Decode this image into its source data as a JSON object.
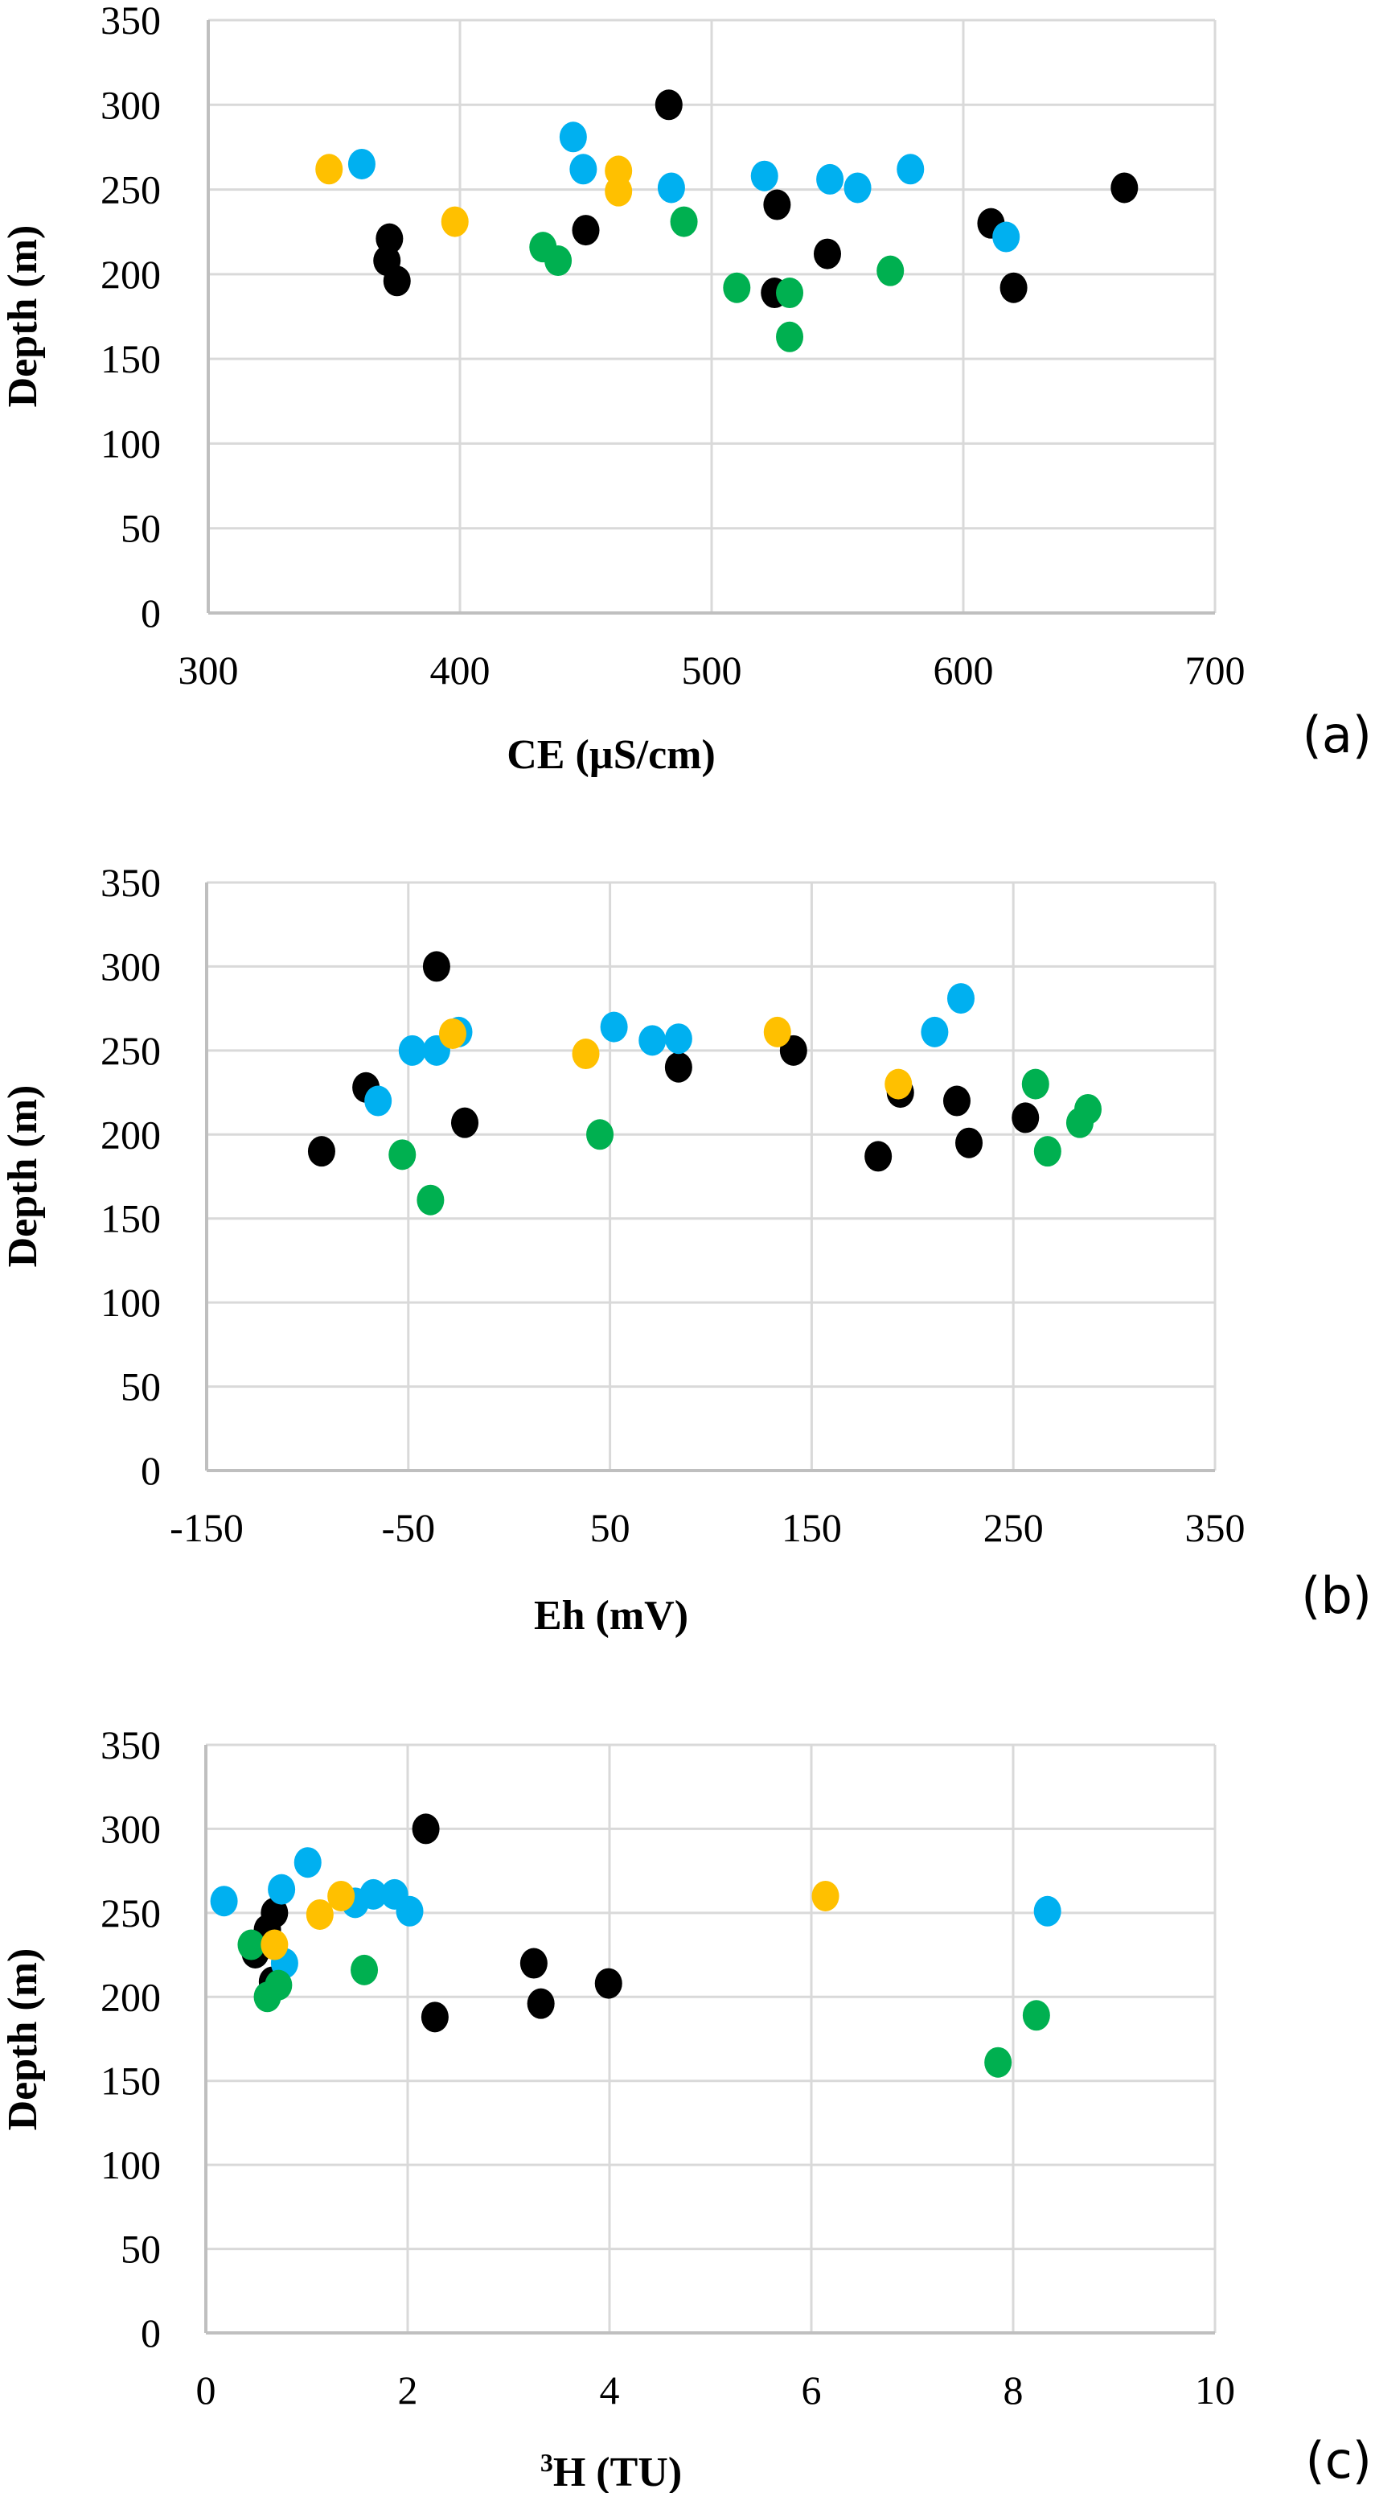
{
  "chart_data": [
    {
      "id": "a",
      "type": "scatter",
      "panel_label": "(a)",
      "title": "",
      "xlabel": "CE (µS/cm)",
      "ylabel": "Depth (m)",
      "xlim": [
        300,
        700
      ],
      "ylim": [
        0,
        350
      ],
      "xticks": [
        300,
        400,
        500,
        600,
        700
      ],
      "yticks": [
        0,
        50,
        100,
        150,
        200,
        250,
        300,
        350
      ],
      "grid": true,
      "legend": "none",
      "series": [
        {
          "name": "black",
          "color": "#000000",
          "points": [
            [
              483,
              300
            ],
            [
              372,
              221
            ],
            [
              371,
              208
            ],
            [
              375,
              196
            ],
            [
              450,
              226
            ],
            [
              526,
              241
            ],
            [
              546,
              212
            ],
            [
              525,
              189
            ],
            [
              611,
              230
            ],
            [
              620,
              192
            ],
            [
              664,
              251
            ]
          ]
        },
        {
          "name": "blue",
          "color": "#00B0F0",
          "points": [
            [
              361,
              265
            ],
            [
              445,
              281
            ],
            [
              449,
              262
            ],
            [
              484,
              251
            ],
            [
              521,
              258
            ],
            [
              547,
              256
            ],
            [
              558,
              251
            ],
            [
              579,
              262
            ],
            [
              617,
              222
            ]
          ]
        },
        {
          "name": "yellow",
          "color": "#FFC000",
          "points": [
            [
              348,
              262
            ],
            [
              398,
              231
            ],
            [
              463,
              261
            ],
            [
              463,
              249
            ]
          ]
        },
        {
          "name": "green",
          "color": "#00B050",
          "points": [
            [
              433,
              216
            ],
            [
              439,
              208
            ],
            [
              489,
              231
            ],
            [
              510,
              192
            ],
            [
              531,
              189
            ],
            [
              531,
              163
            ],
            [
              571,
              202
            ]
          ]
        }
      ]
    },
    {
      "id": "b",
      "type": "scatter",
      "panel_label": "(b)",
      "title": "",
      "xlabel": "Eh (mV)",
      "ylabel": "Depth (m)",
      "xlim": [
        -150,
        350
      ],
      "ylim": [
        0,
        350
      ],
      "xticks": [
        -150,
        -50,
        50,
        150,
        250,
        350
      ],
      "yticks": [
        0,
        50,
        100,
        150,
        200,
        250,
        300,
        350
      ],
      "grid": true,
      "legend": "none",
      "series": [
        {
          "name": "black",
          "color": "#000000",
          "points": [
            [
              -36,
              300
            ],
            [
              -71,
              228
            ],
            [
              -22,
              207
            ],
            [
              -93,
              190
            ],
            [
              84,
              240
            ],
            [
              141,
              250
            ],
            [
              194,
              225
            ],
            [
              222,
              220
            ],
            [
              228,
              195
            ],
            [
              183,
              187
            ],
            [
              256,
              210
            ]
          ]
        },
        {
          "name": "blue",
          "color": "#00B0F0",
          "points": [
            [
              -25,
              261
            ],
            [
              -48,
              250
            ],
            [
              -36,
              250
            ],
            [
              -65,
              220
            ],
            [
              52,
              264
            ],
            [
              71,
              256
            ],
            [
              84,
              257
            ],
            [
              224,
              281
            ],
            [
              211,
              261
            ]
          ]
        },
        {
          "name": "yellow",
          "color": "#FFC000",
          "points": [
            [
              -28,
              260
            ],
            [
              38,
              248
            ],
            [
              133,
              261
            ],
            [
              193,
              230
            ]
          ]
        },
        {
          "name": "green",
          "color": "#00B050",
          "points": [
            [
              -53,
              188
            ],
            [
              -39,
              161
            ],
            [
              45,
              200
            ],
            [
              261,
              230
            ],
            [
              287,
              215
            ],
            [
              283,
              207
            ],
            [
              267,
              190
            ]
          ]
        }
      ]
    },
    {
      "id": "c",
      "type": "scatter",
      "panel_label": "(c)",
      "title": "",
      "xlabel": "³H (TU)",
      "xlabel_sup": "3",
      "xlabel_main": "H (TU)",
      "ylabel": "Depth (m)",
      "xlim": [
        0,
        10
      ],
      "ylim": [
        0,
        350
      ],
      "xticks": [
        0,
        2,
        4,
        6,
        8,
        10
      ],
      "yticks": [
        0,
        50,
        100,
        150,
        200,
        250,
        300,
        350
      ],
      "grid": true,
      "legend": "none",
      "series": [
        {
          "name": "black",
          "color": "#000000",
          "points": [
            [
              2.18,
              300
            ],
            [
              0.68,
              250
            ],
            [
              0.61,
              240
            ],
            [
              0.49,
              226
            ],
            [
              0.66,
              209
            ],
            [
              2.27,
              188
            ],
            [
              3.25,
              220
            ],
            [
              3.32,
              196
            ],
            [
              3.99,
              208
            ]
          ]
        },
        {
          "name": "blue",
          "color": "#00B0F0",
          "points": [
            [
              1.01,
              280
            ],
            [
              0.75,
              264
            ],
            [
              0.18,
              257
            ],
            [
              1.48,
              256
            ],
            [
              1.66,
              261
            ],
            [
              1.87,
              261
            ],
            [
              2.02,
              251
            ],
            [
              0.78,
              220
            ],
            [
              8.34,
              251
            ]
          ]
        },
        {
          "name": "green",
          "color": "#00B050",
          "points": [
            [
              0.45,
              231
            ],
            [
              0.72,
              207
            ],
            [
              0.61,
              200
            ],
            [
              1.57,
              216
            ],
            [
              8.23,
              189
            ],
            [
              7.85,
              161
            ]
          ]
        },
        {
          "name": "yellow",
          "color": "#FFC000",
          "points": [
            [
              1.34,
              260
            ],
            [
              1.13,
              249
            ],
            [
              0.68,
              231
            ],
            [
              6.14,
              260
            ]
          ]
        }
      ]
    }
  ]
}
